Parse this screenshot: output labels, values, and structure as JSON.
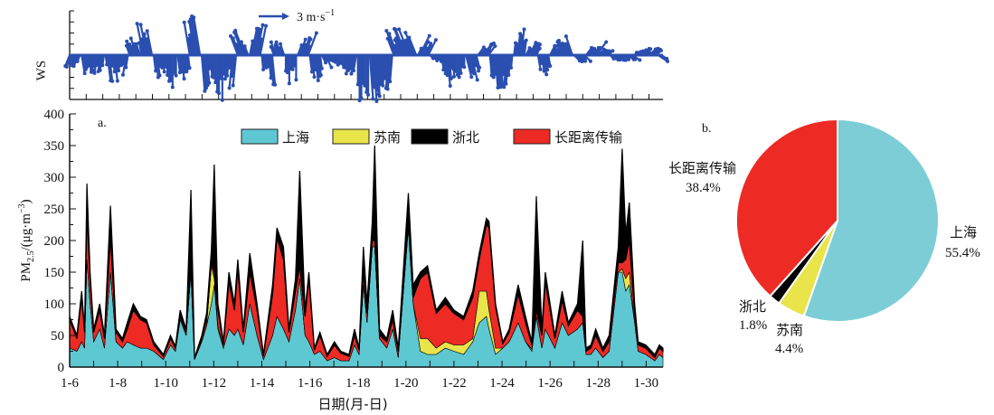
{
  "chart_data": [
    {
      "type": "area",
      "panel": "a.",
      "title": "",
      "xlabel": "日期(月-日)",
      "ylabel": "PM2.5/(μg·m−3)",
      "ylabel_parts": {
        "main": "PM",
        "sub": "2.5",
        "unit": "/(μg·m",
        "sup": "−3",
        "close": ")"
      },
      "xlim": [
        6,
        30.7
      ],
      "ylim": [
        0,
        400
      ],
      "yticks": [
        0,
        50,
        100,
        150,
        200,
        250,
        300,
        350,
        400
      ],
      "xtick_labels": [
        "1-6",
        "1-8",
        "1-10",
        "1-12",
        "1-14",
        "1-16",
        "1-18",
        "1-20",
        "1-22",
        "1-24",
        "1-26",
        "1-28",
        "1-30"
      ],
      "xtick_days": [
        6,
        8,
        10,
        12,
        14,
        16,
        18,
        20,
        22,
        24,
        26,
        28,
        30
      ],
      "stacked": true,
      "legend": {
        "position": "top",
        "entries": [
          "上海",
          "苏南",
          "浙北",
          "长距离传输"
        ]
      },
      "series": [
        {
          "name": "上海",
          "color": "#5ec8d2"
        },
        {
          "name": "苏南",
          "color": "#e8e44a"
        },
        {
          "name": "浙北",
          "color": "#000000"
        },
        {
          "name": "长距离传输",
          "color": "#ee2a24"
        }
      ],
      "points_columns": [
        "day",
        "上海",
        "苏南",
        "浙北",
        "长距离传输"
      ],
      "points": [
        [
          6.0,
          30,
          0,
          5,
          45
        ],
        [
          6.3,
          25,
          0,
          5,
          20
        ],
        [
          6.5,
          40,
          0,
          10,
          70
        ],
        [
          6.62,
          30,
          0,
          5,
          25
        ],
        [
          6.72,
          170,
          0,
          50,
          70
        ],
        [
          6.85,
          100,
          0,
          10,
          40
        ],
        [
          7.0,
          40,
          0,
          5,
          15
        ],
        [
          7.25,
          60,
          0,
          10,
          30
        ],
        [
          7.45,
          30,
          0,
          5,
          15
        ],
        [
          7.7,
          150,
          0,
          50,
          55
        ],
        [
          7.93,
          40,
          0,
          5,
          15
        ],
        [
          8.2,
          30,
          0,
          5,
          10
        ],
        [
          8.4,
          40,
          0,
          10,
          20
        ],
        [
          8.65,
          35,
          0,
          10,
          55
        ],
        [
          8.95,
          30,
          0,
          5,
          45
        ],
        [
          9.2,
          30,
          0,
          5,
          40
        ],
        [
          9.5,
          25,
          0,
          5,
          10
        ],
        [
          9.9,
          12,
          0,
          3,
          5
        ],
        [
          10.2,
          35,
          0,
          5,
          10
        ],
        [
          10.4,
          25,
          0,
          3,
          5
        ],
        [
          10.6,
          75,
          0,
          10,
          5
        ],
        [
          10.85,
          50,
          0,
          5,
          5
        ],
        [
          11.05,
          150,
          0,
          120,
          10
        ],
        [
          11.2,
          12,
          0,
          2,
          1
        ],
        [
          11.5,
          40,
          0,
          5,
          5
        ],
        [
          11.7,
          65,
          0,
          10,
          10
        ],
        [
          11.9,
          100,
          60,
          20,
          5
        ],
        [
          12.02,
          130,
          10,
          170,
          10
        ],
        [
          12.17,
          60,
          5,
          10,
          25
        ],
        [
          12.4,
          30,
          0,
          5,
          5
        ],
        [
          12.63,
          60,
          0,
          15,
          75
        ],
        [
          12.86,
          50,
          0,
          10,
          40
        ],
        [
          13.0,
          60,
          0,
          15,
          95
        ],
        [
          13.23,
          35,
          0,
          5,
          20
        ],
        [
          13.5,
          100,
          0,
          30,
          50
        ],
        [
          13.8,
          50,
          0,
          10,
          40
        ],
        [
          14.07,
          12,
          0,
          3,
          5
        ],
        [
          14.45,
          50,
          0,
          15,
          65
        ],
        [
          14.63,
          80,
          0,
          15,
          125
        ],
        [
          14.9,
          60,
          0,
          20,
          110
        ],
        [
          15.13,
          40,
          0,
          5,
          15
        ],
        [
          15.4,
          90,
          0,
          20,
          30
        ],
        [
          15.58,
          140,
          0,
          150,
          20
        ],
        [
          15.8,
          50,
          0,
          10,
          30
        ],
        [
          15.96,
          40,
          0,
          10,
          100
        ],
        [
          16.19,
          20,
          0,
          3,
          7
        ],
        [
          16.42,
          25,
          0,
          5,
          25
        ],
        [
          16.72,
          10,
          0,
          3,
          7
        ],
        [
          17.02,
          15,
          0,
          5,
          20
        ],
        [
          17.29,
          10,
          0,
          3,
          12
        ],
        [
          17.63,
          10,
          0,
          3,
          7
        ],
        [
          17.86,
          35,
          0,
          10,
          15
        ],
        [
          18.05,
          20,
          0,
          3,
          7
        ],
        [
          18.23,
          130,
          0,
          40,
          20
        ],
        [
          18.38,
          70,
          0,
          15,
          15
        ],
        [
          18.6,
          190,
          0,
          30,
          10
        ],
        [
          18.7,
          190,
          0,
          150,
          10
        ],
        [
          18.9,
          45,
          0,
          10,
          5
        ],
        [
          19.2,
          30,
          0,
          5,
          10
        ],
        [
          19.45,
          60,
          0,
          15,
          15
        ],
        [
          19.68,
          15,
          0,
          5,
          10
        ],
        [
          20.1,
          220,
          0,
          40,
          15
        ],
        [
          20.3,
          100,
          0,
          20,
          10
        ],
        [
          20.6,
          25,
          20,
          10,
          95
        ],
        [
          20.9,
          20,
          25,
          10,
          105
        ],
        [
          21.26,
          20,
          10,
          5,
          55
        ],
        [
          21.64,
          30,
          10,
          10,
          60
        ],
        [
          22.0,
          25,
          10,
          5,
          50
        ],
        [
          22.4,
          20,
          15,
          5,
          40
        ],
        [
          22.78,
          40,
          5,
          10,
          65
        ],
        [
          23.05,
          70,
          50,
          10,
          50
        ],
        [
          23.35,
          80,
          40,
          10,
          105
        ],
        [
          23.46,
          60,
          30,
          10,
          130
        ],
        [
          23.73,
          20,
          10,
          5,
          65
        ],
        [
          24.03,
          30,
          0,
          3,
          7
        ],
        [
          24.3,
          40,
          0,
          5,
          15
        ],
        [
          24.67,
          70,
          0,
          15,
          45
        ],
        [
          24.98,
          40,
          0,
          10,
          30
        ],
        [
          25.24,
          25,
          3,
          5,
          7
        ],
        [
          25.43,
          80,
          0,
          180,
          10
        ],
        [
          25.66,
          30,
          0,
          10,
          20
        ],
        [
          25.8,
          60,
          0,
          15,
          75
        ],
        [
          26.2,
          30,
          0,
          5,
          15
        ],
        [
          26.5,
          70,
          0,
          15,
          35
        ],
        [
          26.76,
          50,
          0,
          5,
          15
        ],
        [
          27.14,
          60,
          0,
          10,
          30
        ],
        [
          27.36,
          70,
          0,
          120,
          10
        ],
        [
          27.5,
          20,
          0,
          5,
          5
        ],
        [
          27.7,
          20,
          0,
          5,
          10
        ],
        [
          27.9,
          30,
          0,
          10,
          20
        ],
        [
          28.2,
          15,
          0,
          5,
          10
        ],
        [
          28.46,
          25,
          0,
          10,
          15
        ],
        [
          28.84,
          150,
          0,
          25,
          15
        ],
        [
          29.0,
          150,
          5,
          180,
          10
        ],
        [
          29.15,
          120,
          20,
          40,
          30
        ],
        [
          29.3,
          130,
          20,
          60,
          50
        ],
        [
          29.52,
          70,
          0,
          15,
          15
        ],
        [
          29.67,
          25,
          0,
          5,
          10
        ],
        [
          29.98,
          20,
          0,
          5,
          10
        ],
        [
          30.36,
          10,
          0,
          5,
          5
        ],
        [
          30.55,
          20,
          0,
          5,
          10
        ],
        [
          30.7,
          15,
          0,
          5,
          10
        ]
      ]
    },
    {
      "type": "vector",
      "ylabel": "WS",
      "scale_label": "3 m·s",
      "scale_sup": "−1",
      "scale_value_ms": 3,
      "color": "#2a4fb0",
      "day_start": 6,
      "step_days": 0.5,
      "v": [
        -2.5,
        -3,
        -3.5,
        -4,
        -3,
        3,
        5,
        -4,
        -5,
        -4,
        6,
        -6,
        -7,
        -5,
        4,
        5,
        -5,
        3,
        -5,
        4,
        -4,
        -2,
        -2,
        -3,
        -7,
        -7,
        -6,
        4,
        5,
        3,
        -1,
        -5,
        -5,
        -4,
        2,
        -6,
        -5,
        4,
        2,
        -3,
        2,
        3,
        -1,
        2,
        1,
        -1,
        -1,
        1,
        1,
        -1
      ],
      "u": [
        -1,
        0.5,
        -0.5,
        0.5,
        -0.5,
        -1,
        -1,
        0.5,
        0,
        0.5,
        -1,
        0.5,
        0,
        -0.5,
        -1.5,
        1,
        0.5,
        -1,
        0,
        1.5,
        0.5,
        1,
        0.5,
        -0.5,
        0,
        0.5,
        -0.5,
        -1.5,
        -2,
        1.5,
        1,
        0.5,
        0,
        1,
        1.5,
        0.5,
        -0.5,
        0.5,
        1,
        0.5,
        1,
        -1,
        1,
        1.5,
        1,
        1,
        1.5,
        1,
        1,
        1.5
      ]
    },
    {
      "type": "pie",
      "panel": "b.",
      "labels": [
        "上海",
        "苏南",
        "浙北",
        "长距离传输"
      ],
      "values": [
        55.4,
        4.4,
        1.8,
        38.4
      ],
      "value_labels": [
        "55.4%",
        "4.4%",
        "1.8%",
        "38.4%"
      ],
      "colors": [
        "#7dcdd7",
        "#e8e44a",
        "#000000",
        "#ee2a24"
      ],
      "start": "top",
      "direction": "clockwise"
    }
  ]
}
